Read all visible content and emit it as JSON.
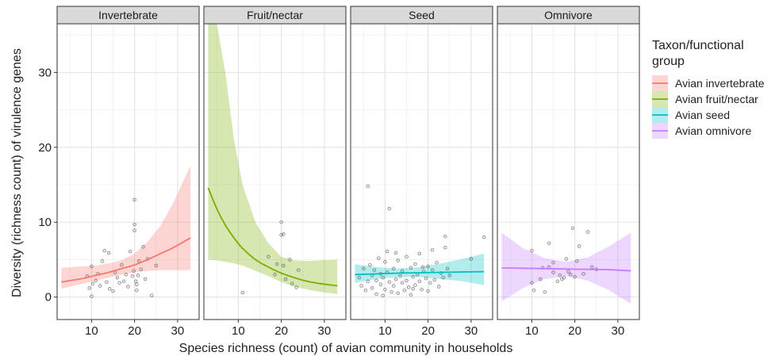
{
  "chart_data": {
    "type": "scatter",
    "xlabel": "Species richness (count) of avian community in households",
    "ylabel": "Diversity (richness count) of virulence genes",
    "xlim": [
      2,
      35
    ],
    "ylim": [
      -3,
      36.5
    ],
    "x_ticks": [
      10,
      20,
      30
    ],
    "y_ticks": [
      0,
      10,
      20,
      30
    ],
    "grid": true,
    "legend": {
      "title": "Taxon/functional group",
      "title_lines": [
        "Taxon/functional",
        "group"
      ],
      "position": "right"
    },
    "panels": [
      {
        "title": "Invertebrate",
        "series_name": "Avian invertebrate",
        "color": "#f8766d",
        "fit": {
          "x": [
            3,
            5,
            8,
            11,
            14,
            17,
            20,
            23,
            26,
            29,
            33
          ],
          "y": [
            2.0,
            2.2,
            2.5,
            2.9,
            3.3,
            3.8,
            4.3,
            5.0,
            5.8,
            6.6,
            7.9
          ]
        },
        "band": {
          "x": [
            3,
            5,
            8,
            11,
            14,
            17,
            20,
            23,
            26,
            29,
            33
          ],
          "lower": [
            1.1,
            1.4,
            1.8,
            2.2,
            2.6,
            3.0,
            3.3,
            3.5,
            3.6,
            3.6,
            3.6
          ],
          "upper": [
            3.9,
            4.0,
            4.1,
            4.2,
            4.5,
            4.9,
            5.8,
            7.4,
            9.5,
            12.6,
            17.6
          ]
        },
        "points": [
          [
            9,
            2.8
          ],
          [
            9.5,
            1.2
          ],
          [
            10,
            0.1
          ],
          [
            10.3,
            1.8
          ],
          [
            10,
            4.1
          ],
          [
            11,
            2.2
          ],
          [
            11.5,
            3.1
          ],
          [
            12,
            1.5
          ],
          [
            12.5,
            4.8
          ],
          [
            13,
            6.2
          ],
          [
            13.5,
            2.0
          ],
          [
            14,
            5.9
          ],
          [
            14.2,
            1.1
          ],
          [
            15,
            0.8
          ],
          [
            15.5,
            3.3
          ],
          [
            16,
            2.6
          ],
          [
            16.5,
            1.9
          ],
          [
            17,
            4.3
          ],
          [
            17.5,
            2.1
          ],
          [
            18,
            3.0
          ],
          [
            18.5,
            1.4
          ],
          [
            19,
            6.1
          ],
          [
            19.5,
            2.8
          ],
          [
            20,
            9.7
          ],
          [
            20,
            13.0
          ],
          [
            20,
            8.9
          ],
          [
            20.3,
            2.1
          ],
          [
            20.5,
            1.7
          ],
          [
            20.5,
            0.9
          ],
          [
            21,
            4.8
          ],
          [
            21.5,
            3.7
          ],
          [
            22,
            6.7
          ],
          [
            22.5,
            2.4
          ],
          [
            23,
            5.1
          ],
          [
            24,
            0.2
          ],
          [
            25,
            4.2
          ],
          [
            19.8,
            3.5
          ],
          [
            20.8,
            2.9
          ]
        ]
      },
      {
        "title": "Fruit/nectar",
        "series_name": "Avian fruit/nectar",
        "color": "#7cae00",
        "fit": {
          "x": [
            3,
            5,
            7,
            9,
            11,
            14,
            17,
            20,
            23,
            26,
            29,
            33
          ],
          "y": [
            14.6,
            11.8,
            9.6,
            7.9,
            6.5,
            5.0,
            4.0,
            3.2,
            2.6,
            2.1,
            1.8,
            1.5
          ]
        },
        "band": {
          "x": [
            3,
            5,
            7,
            9,
            11,
            14,
            17,
            20,
            23,
            26,
            29,
            33
          ],
          "lower": [
            5.0,
            4.9,
            4.7,
            4.5,
            4.2,
            3.5,
            2.8,
            2.0,
            1.4,
            1.0,
            0.7,
            0.4
          ],
          "upper": [
            36.5,
            36.5,
            30.0,
            21.0,
            15.0,
            10.0,
            7.2,
            5.4,
            4.9,
            4.8,
            4.9,
            5.0
          ]
        },
        "points": [
          [
            11,
            0.6
          ],
          [
            17,
            5.4
          ],
          [
            18.5,
            3.0
          ],
          [
            19,
            4.4
          ],
          [
            20,
            10.0
          ],
          [
            20,
            8.3
          ],
          [
            20.5,
            8.4
          ],
          [
            20.5,
            4.2
          ],
          [
            21,
            2.4
          ],
          [
            22,
            5.0
          ],
          [
            22.5,
            1.8
          ],
          [
            23.5,
            1.3
          ],
          [
            24,
            3.6
          ]
        ]
      },
      {
        "title": "Seed",
        "series_name": "Avian seed",
        "color": "#00bfc4",
        "fit": {
          "x": [
            3,
            8,
            13,
            18,
            23,
            28,
            33
          ],
          "y": [
            3.0,
            3.1,
            3.2,
            3.25,
            3.3,
            3.35,
            3.4
          ]
        },
        "band": {
          "x": [
            3,
            8,
            13,
            18,
            23,
            28,
            33
          ],
          "lower": [
            1.9,
            2.4,
            2.7,
            2.7,
            2.4,
            2.1,
            1.6
          ],
          "upper": [
            4.4,
            4.0,
            3.8,
            4.0,
            4.5,
            5.1,
            5.8
          ]
        },
        "points": [
          [
            4,
            2.6
          ],
          [
            4.5,
            1.5
          ],
          [
            5,
            3.8
          ],
          [
            5.5,
            0.9
          ],
          [
            6,
            14.8
          ],
          [
            6,
            2.1
          ],
          [
            6.5,
            4.3
          ],
          [
            7,
            1.2
          ],
          [
            7,
            2.9
          ],
          [
            7.5,
            3.6
          ],
          [
            8,
            0.4
          ],
          [
            8,
            2.2
          ],
          [
            8.5,
            5.2
          ],
          [
            9,
            1.7
          ],
          [
            9,
            3.1
          ],
          [
            9.5,
            0.2
          ],
          [
            9.5,
            2.6
          ],
          [
            10,
            4.7
          ],
          [
            10,
            1.0
          ],
          [
            10.5,
            3.3
          ],
          [
            11,
            11.8
          ],
          [
            11,
            2.0
          ],
          [
            11.5,
            0.7
          ],
          [
            12,
            3.8
          ],
          [
            12,
            1.5
          ],
          [
            12.5,
            2.4
          ],
          [
            13,
            4.9
          ],
          [
            13,
            0.5
          ],
          [
            13.5,
            2.8
          ],
          [
            14,
            1.9
          ],
          [
            14,
            3.5
          ],
          [
            14.5,
            0.9
          ],
          [
            15,
            5.4
          ],
          [
            15,
            2.2
          ],
          [
            15.5,
            1.3
          ],
          [
            16,
            3.9
          ],
          [
            16,
            0.3
          ],
          [
            16.5,
            2.7
          ],
          [
            17,
            4.4
          ],
          [
            17,
            1.6
          ],
          [
            17.5,
            3.0
          ],
          [
            18,
            2.1
          ],
          [
            18,
            5.8
          ],
          [
            18.5,
            1.0
          ],
          [
            19,
            3.4
          ],
          [
            19.5,
            2.5
          ],
          [
            20,
            4.1
          ],
          [
            20,
            0.8
          ],
          [
            20.5,
            1.9
          ],
          [
            21,
            3.6
          ],
          [
            21,
            6.3
          ],
          [
            21.5,
            2.3
          ],
          [
            22,
            4.6
          ],
          [
            22.5,
            1.4
          ],
          [
            23,
            3.2
          ],
          [
            23.5,
            2.6
          ],
          [
            24,
            8.1
          ],
          [
            24,
            6.6
          ],
          [
            24.5,
            3.8
          ],
          [
            25,
            2.9
          ],
          [
            30,
            5.1
          ],
          [
            33,
            8.0
          ],
          [
            12.5,
            5.9
          ],
          [
            10.5,
            6.1
          ],
          [
            16.5,
            1.1
          ],
          [
            18.8,
            4.0
          ]
        ]
      },
      {
        "title": "Omnivore",
        "series_name": "Avian omnivore",
        "color": "#c77cff",
        "fit": {
          "x": [
            3,
            8,
            13,
            18,
            23,
            28,
            33
          ],
          "y": [
            3.9,
            3.85,
            3.8,
            3.75,
            3.7,
            3.65,
            3.5
          ]
        },
        "band": {
          "x": [
            3,
            8,
            13,
            18,
            23,
            28,
            33
          ],
          "lower": [
            -0.6,
            1.2,
            2.4,
            2.8,
            2.2,
            0.9,
            -0.9
          ],
          "upper": [
            8.6,
            6.5,
            5.2,
            4.7,
            5.3,
            6.8,
            8.6
          ]
        },
        "points": [
          [
            10,
            6.2
          ],
          [
            10,
            1.9
          ],
          [
            10.5,
            0.9
          ],
          [
            12,
            2.4
          ],
          [
            12.5,
            3.9
          ],
          [
            13,
            0.7
          ],
          [
            14,
            7.2
          ],
          [
            15,
            4.6
          ],
          [
            16,
            2.1
          ],
          [
            16.5,
            2.9
          ],
          [
            17,
            2.4
          ],
          [
            17.5,
            2.6
          ],
          [
            18,
            5.1
          ],
          [
            18.5,
            3.4
          ],
          [
            19,
            3.0
          ],
          [
            19.5,
            9.2
          ],
          [
            20,
            2.7
          ],
          [
            20.5,
            4.8
          ],
          [
            21,
            6.8
          ],
          [
            22,
            3.1
          ],
          [
            23,
            8.7
          ],
          [
            24,
            4.0
          ],
          [
            25,
            3.7
          ],
          [
            15,
            3.3
          ],
          [
            14,
            4.0
          ]
        ]
      }
    ]
  }
}
